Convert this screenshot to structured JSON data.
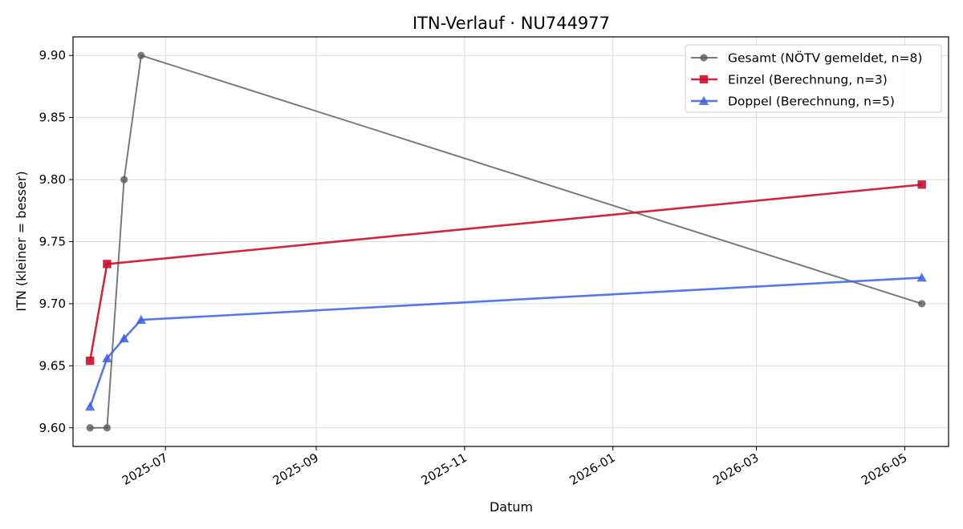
{
  "chart_data": {
    "type": "line",
    "title": "ITN-Verlauf · NU744977",
    "xlabel": "Datum",
    "ylabel": "ITN  (kleiner = besser)",
    "ylim": [
      9.585,
      9.915
    ],
    "xlim": [
      "2025-05-24",
      "2026-05-19"
    ],
    "yticks": [
      9.6,
      9.65,
      9.7,
      9.75,
      9.8,
      9.85,
      9.9
    ],
    "ytick_labels": [
      "9.60",
      "9.65",
      "9.70",
      "9.75",
      "9.80",
      "9.85",
      "9.90"
    ],
    "xticks": [
      "2025-07-01",
      "2025-09-01",
      "2025-11-01",
      "2026-01-01",
      "2026-03-01",
      "2026-05-01"
    ],
    "xtick_labels": [
      "2025-07",
      "2025-09",
      "2025-11",
      "2026-01",
      "2026-03",
      "2026-05"
    ],
    "grid": true,
    "legend_position": "top-right",
    "series": [
      {
        "name": "Gesamt (NÖTV gemeldet, n=8)",
        "color": "#555555",
        "marker": "circle",
        "points": [
          {
            "x": "2025-05-31",
            "y": 9.6
          },
          {
            "x": "2025-06-07",
            "y": 9.6
          },
          {
            "x": "2025-06-14",
            "y": 9.8
          },
          {
            "x": "2025-06-21",
            "y": 9.9
          },
          {
            "x": "2026-05-08",
            "y": 9.7
          }
        ]
      },
      {
        "name": "Einzel (Berechnung, n=3)",
        "color": "#c8102e",
        "marker": "square",
        "points": [
          {
            "x": "2025-05-31",
            "y": 9.654
          },
          {
            "x": "2025-06-07",
            "y": 9.732
          },
          {
            "x": "2026-05-08",
            "y": 9.796
          }
        ]
      },
      {
        "name": "Doppel (Berechnung, n=5)",
        "color": "#3b5fe8",
        "marker": "triangle",
        "points": [
          {
            "x": "2025-05-31",
            "y": 9.617
          },
          {
            "x": "2025-06-07",
            "y": 9.656
          },
          {
            "x": "2025-06-14",
            "y": 9.672
          },
          {
            "x": "2025-06-21",
            "y": 9.687
          },
          {
            "x": "2026-05-08",
            "y": 9.721
          }
        ]
      }
    ]
  }
}
